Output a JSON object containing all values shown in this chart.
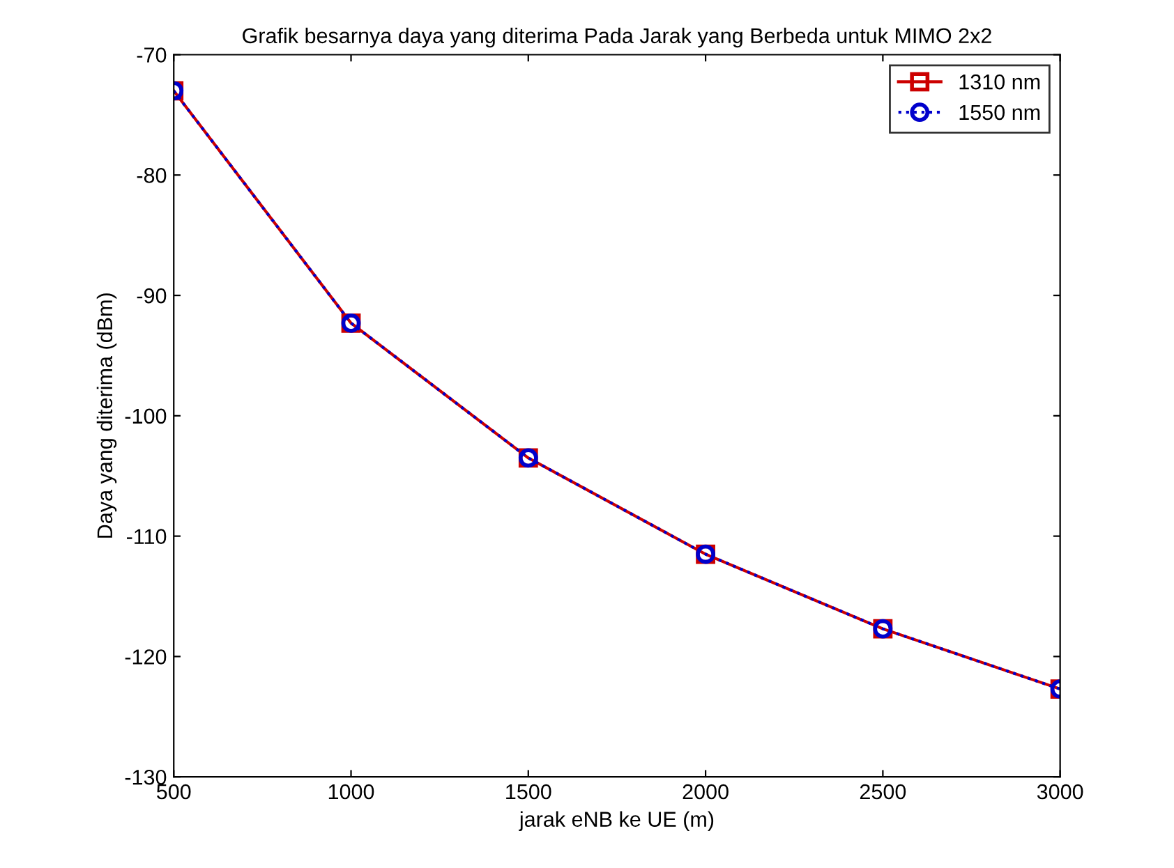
{
  "chart_data": {
    "type": "line",
    "title": "Grafik besarnya daya yang diterima Pada Jarak yang Berbeda untuk MIMO 2x2",
    "xlabel": "jarak eNB ke UE (m)",
    "ylabel": "Daya yang diterima (dBm)",
    "x": [
      500,
      1000,
      1500,
      2000,
      2500,
      3000
    ],
    "series": [
      {
        "name": "1310 nm",
        "color": "#cc0000",
        "values": [
          -73,
          -92.3,
          -103.5,
          -111.5,
          -117.7,
          -122.7
        ],
        "marker": "square",
        "line_style": "solid"
      },
      {
        "name": "1550 nm",
        "color": "#0000cc",
        "values": [
          -73,
          -92.3,
          -103.5,
          -111.5,
          -117.7,
          -122.7
        ],
        "marker": "circle",
        "line_style": "dotted"
      }
    ],
    "xlim": [
      500,
      3000
    ],
    "xticks": [
      500,
      1000,
      1500,
      2000,
      2500,
      3000
    ],
    "ylim": [
      -130,
      -70
    ],
    "yticks": [
      -130,
      -120,
      -110,
      -100,
      -90,
      -80,
      -70
    ],
    "grid": false,
    "legend": "top right"
  }
}
